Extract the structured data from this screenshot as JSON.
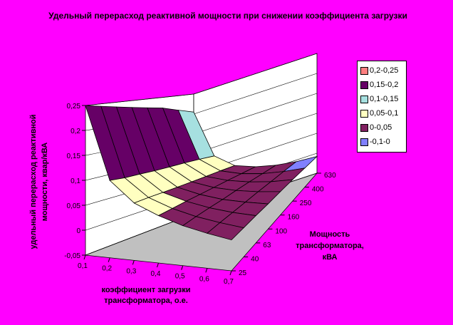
{
  "chart_data": {
    "type": "surface",
    "title": "Удельный перерасход реактивной мощности при снижении коэффициента загрузки",
    "xlabel": "коэффициент загрузки трансформатора, о.е.",
    "ylabel": "Мощность трансформатора, кВА",
    "zlabel": "удельный перерасход реактивной мощности, квар/кВА",
    "x": [
      0.1,
      0.2,
      0.3,
      0.4,
      0.5,
      0.6,
      0.7
    ],
    "x_tick_labels": [
      "0,1",
      "0,2",
      "0,3",
      "0,4",
      "0,5",
      "0,6",
      "0,7"
    ],
    "y_tick_labels": [
      "25",
      "40",
      "63",
      "100",
      "160",
      "250",
      "400",
      "630"
    ],
    "zlim": [
      -0.05,
      0.25
    ],
    "z_ticks": [
      -0.05,
      0,
      0.05,
      0.1,
      0.15,
      0.2,
      0.25
    ],
    "z_tick_labels": [
      "-0,05",
      "0",
      "0,05",
      "0,1",
      "0,15",
      "0,2",
      "0,25"
    ],
    "z": [
      [
        0.25,
        0.105,
        0.065,
        0.045,
        0.03,
        0.02,
        0.012
      ],
      [
        0.245,
        0.1,
        0.062,
        0.042,
        0.028,
        0.018,
        0.01
      ],
      [
        0.24,
        0.097,
        0.058,
        0.039,
        0.025,
        0.015,
        0.008
      ],
      [
        0.235,
        0.093,
        0.054,
        0.035,
        0.021,
        0.012,
        0.005
      ],
      [
        0.23,
        0.09,
        0.05,
        0.031,
        0.018,
        0.009,
        0.003
      ],
      [
        0.225,
        0.087,
        0.046,
        0.027,
        0.014,
        0.005,
        0.0
      ],
      [
        0.215,
        0.083,
        0.042,
        0.022,
        0.009,
        0.001,
        -0.004
      ],
      [
        0.205,
        0.078,
        0.037,
        0.017,
        0.004,
        -0.004,
        -0.008
      ]
    ],
    "legend": {
      "position": "right",
      "entries": [
        {
          "label": "0,2-0,25",
          "color": "#ff8080",
          "min": 0.2,
          "max": 0.25
        },
        {
          "label": "0,15-0,2",
          "color": "#660066",
          "min": 0.15,
          "max": 0.2
        },
        {
          "label": "0,1-0,15",
          "color": "#a6e0e0",
          "min": 0.1,
          "max": 0.15
        },
        {
          "label": "0,05-0,1",
          "color": "#ffffc0",
          "min": 0.05,
          "max": 0.1
        },
        {
          "label": "0-0,05",
          "color": "#802060",
          "min": 0,
          "max": 0.05
        },
        {
          "label": "-0,1-0",
          "color": "#8080ff",
          "min": -0.1,
          "max": 0
        }
      ]
    },
    "grid": true
  }
}
